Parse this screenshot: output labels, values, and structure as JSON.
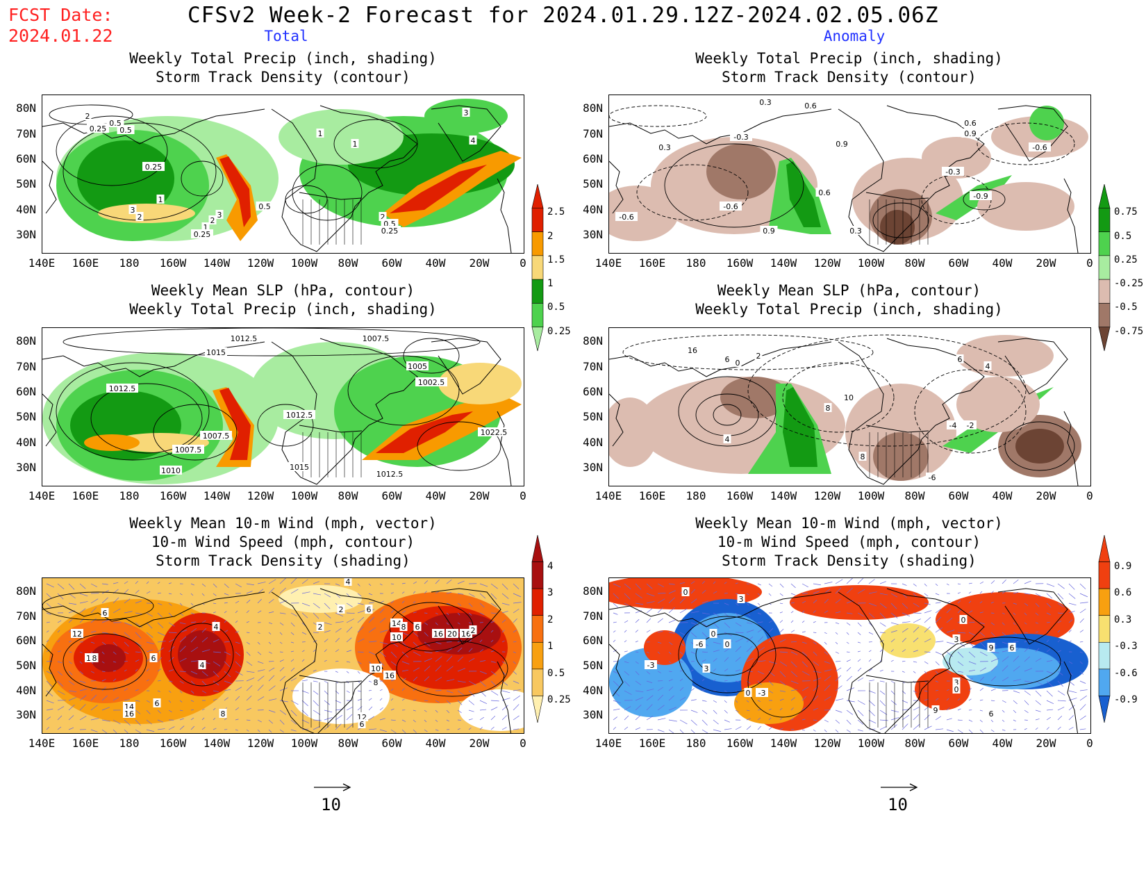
{
  "header": {
    "fcst_label": "FCST Date:",
    "fcst_date": "2024.01.22",
    "title": "CFSv2 Week-2 Forecast for 2024.01.29.12Z-2024.02.05.06Z",
    "col_left": "Total",
    "col_right": "Anomaly"
  },
  "panels": {
    "p1": [
      "Weekly Total Precip (inch, shading)",
      "Storm Track Density (contour)"
    ],
    "p2": [
      "Weekly Total Precip (inch, shading)",
      "Storm Track Density (contour)"
    ],
    "p3": [
      "Weekly Mean SLP (hPa, contour)",
      "Weekly Total Precip (inch, shading)"
    ],
    "p4": [
      "Weekly Mean SLP (hPa, contour)",
      "Weekly Total Precip (inch, shading)"
    ],
    "p5": [
      "Weekly Mean 10-m Wind (mph, vector)",
      "10-m Wind Speed (mph, contour)",
      "Storm Track Density (shading)"
    ],
    "p6": [
      "Weekly Mean 10-m Wind (mph, vector)",
      "10-m Wind Speed (mph, contour)",
      "Storm Track Density (shading)"
    ]
  },
  "axes": {
    "lat_labels": [
      "80N",
      "70N",
      "60N",
      "50N",
      "40N",
      "30N"
    ],
    "lon_labels": [
      "140E",
      "160E",
      "180",
      "160W",
      "140W",
      "120W",
      "100W",
      "80W",
      "60W",
      "40W",
      "20W",
      "0"
    ]
  },
  "colorbars": {
    "precip_total": {
      "labels": [
        "2.5",
        "2",
        "1.5",
        "1",
        "0.5",
        "0.25"
      ],
      "colors": [
        "#e02000",
        "#f89a00",
        "#f8d878",
        "#139a13",
        "#4ed24e",
        "#a8eca0"
      ]
    },
    "precip_anom": {
      "labels": [
        "0.75",
        "0.5",
        "0.25",
        "-0.25",
        "-0.5",
        "-0.75"
      ],
      "colors": [
        "#139a13",
        "#4ed24e",
        "#a8eca0",
        "#dcbcb0",
        "#a07868",
        "#6c4434"
      ]
    },
    "storm_total": {
      "labels": [
        "4",
        "3",
        "2",
        "1",
        "0.5",
        "0.25"
      ],
      "colors": [
        "#a81010",
        "#e02000",
        "#f87010",
        "#f8a010",
        "#f8c860",
        "#fff0b0"
      ]
    },
    "storm_anom": {
      "labels": [
        "0.9",
        "0.6",
        "0.3",
        "-0.3",
        "-0.6",
        "-0.9"
      ],
      "colors": [
        "#f04010",
        "#f8a010",
        "#f8e070",
        "#b8eaf0",
        "#50a8f0",
        "#1860d0"
      ]
    }
  },
  "contour_labels": {
    "p1": [
      "2",
      "0.25",
      "0.5",
      "0.5",
      "0.25",
      "1",
      "3",
      "2",
      "3",
      "2",
      "1",
      "0.25",
      "0.5",
      "1",
      "1",
      "3",
      "4",
      "2",
      "0.5",
      "0.25"
    ],
    "p2": [
      "0.3",
      "0.6",
      "-0.3",
      "0.3",
      "0.9",
      "0.6",
      "-0.6",
      "-0.6",
      "0.6",
      "0.9",
      "0.3",
      "-0.3",
      "-0.9",
      "-0.6",
      "0.9"
    ],
    "p3": [
      "1012.5",
      "1015",
      "1007.5",
      "1005",
      "1002.5",
      "1012.5",
      "1012.5",
      "1007.5",
      "1007.5",
      "1010",
      "1015",
      "1012.5",
      "1022.5"
    ],
    "p4": [
      "16",
      "6",
      "0",
      "2",
      "8",
      "10",
      "6",
      "4",
      "-4",
      "-2",
      "4",
      "8",
      "-6"
    ],
    "p5": [
      "4",
      "6",
      "4",
      "12",
      "10",
      "8",
      "6",
      "4",
      "6",
      "14",
      "16",
      "8",
      "2",
      "2",
      "6",
      "14",
      "8",
      "10",
      "6",
      "16",
      "20",
      "16",
      "2",
      "6",
      "10",
      "8",
      "16",
      "12",
      "6"
    ],
    "p6": [
      "0",
      "3",
      "0",
      "-6",
      "0",
      "-3",
      "3",
      "0",
      "-3",
      "0",
      "3",
      "9",
      "6",
      "3",
      "0",
      "9",
      "6"
    ]
  },
  "vector_reference": {
    "left": "10",
    "right": "10"
  }
}
